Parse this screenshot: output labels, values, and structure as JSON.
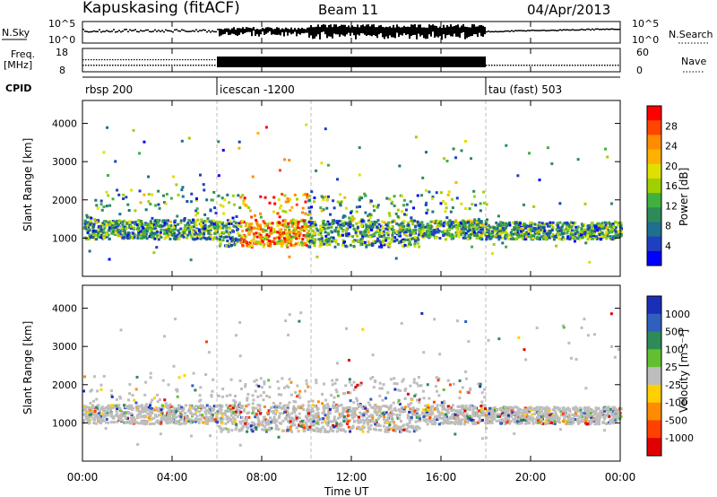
{
  "header": {
    "station": "Kapuskasing (fitACF)",
    "beam": "Beam 11",
    "date": "04/Apr/2013"
  },
  "noise_panel": {
    "left_label": "N.Sky",
    "right_label": "N.Search",
    "ticks": [
      "10^5",
      "10^0"
    ]
  },
  "freq_panel": {
    "left_label_1": "Freq.",
    "left_label_2": "[MHz]",
    "left_ticks": [
      "18",
      "8"
    ],
    "right_ticks": [
      "60",
      "0"
    ],
    "right_label": "Nave"
  },
  "cpid_panel": {
    "label": "CPID",
    "segments": [
      {
        "name": "rbsp 200",
        "start_hour": 0,
        "end_hour": 6
      },
      {
        "name": "icescan -1200",
        "start_hour": 6,
        "end_hour": 18
      },
      {
        "name": "tau (fast) 503",
        "start_hour": 18,
        "end_hour": 24
      }
    ]
  },
  "chart_data": [
    {
      "type": "heatmap",
      "parameter": "power",
      "ylabel": "Slant Range [km]",
      "xlim_hours": [
        0,
        24
      ],
      "ylim_km": [
        0,
        4600
      ],
      "yticks": [
        1000,
        2000,
        3000,
        4000
      ],
      "colorbar": {
        "label": "Power [dB]",
        "ticks": [
          "28",
          "24",
          "20",
          "16",
          "12",
          "8",
          "4"
        ],
        "colors": [
          "#ff0000",
          "#ff4500",
          "#ff8c00",
          "#ffb000",
          "#e0e000",
          "#a0d000",
          "#40b040",
          "#2e8b57",
          "#1f6f8f",
          "#1e40c0",
          "#0000ff"
        ]
      }
    },
    {
      "type": "heatmap",
      "parameter": "velocity",
      "ylabel": "Slant Range [km]",
      "xlim_hours": [
        0,
        24
      ],
      "ylim_km": [
        0,
        4600
      ],
      "yticks": [
        1000,
        2000,
        3000,
        4000
      ],
      "colorbar": {
        "label": "Velocity [m s⁻¹]",
        "ticks": [
          "1000",
          "500",
          "100",
          "25",
          "-25",
          "-100",
          "-500",
          "-1000"
        ],
        "colors": [
          "#1a2fb8",
          "#2f60c0",
          "#2e8b57",
          "#62c030",
          "#bdbdbd",
          "#ffd000",
          "#ff8c00",
          "#ff4000",
          "#e00000"
        ]
      }
    }
  ],
  "x_axis": {
    "ticks": [
      "00:00",
      "04:00",
      "08:00",
      "12:00",
      "16:00",
      "20:00",
      "00:00"
    ],
    "label": "Time UT"
  }
}
